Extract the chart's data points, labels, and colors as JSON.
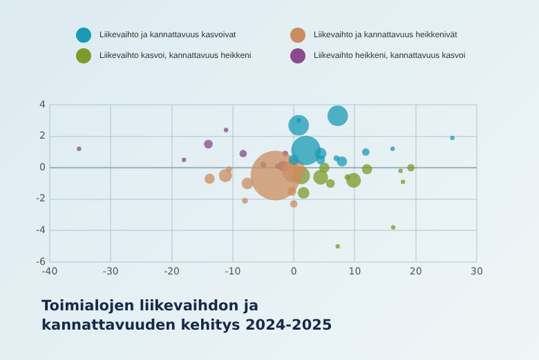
{
  "chart_data": {
    "type": "bubble",
    "title": "Toimialojen liikevaihdon ja kannattavuuden kehitys 2024-2025",
    "xlim": [
      -40,
      30
    ],
    "xticks": [
      -40,
      -30,
      -20,
      -10,
      0,
      10,
      20,
      30
    ],
    "ylim": [
      -6,
      4
    ],
    "yticks": [
      -6,
      -4,
      -2,
      0,
      2,
      4
    ],
    "grid": true,
    "legend": "top",
    "ref_lines": [
      {
        "axis": "y",
        "value": 0,
        "label": null
      }
    ],
    "series": [
      {
        "name": "Liikevaihto ja kannattavuus kasvoivat",
        "color": "#1a9bb5",
        "x": [
          0.8,
          7.2,
          2.0,
          4.4,
          0,
          4.4,
          7.9,
          7.0,
          11.8,
          16.2,
          26,
          0.8
        ],
        "values": [
          2.7,
          3.3,
          1.1,
          0.9,
          0.5,
          0.5,
          0.4,
          0.6,
          1.0,
          1.2,
          1.9,
          3.0
        ],
        "sizes": [
          0.17,
          0.17,
          0.35,
          0.055,
          0.042,
          0.031,
          0.042,
          0.014,
          0.022,
          0.008,
          0.008,
          0.008
        ]
      },
      {
        "name": "Liikevaihto ja kannattavuus heikkenivät",
        "color": "#c98d5f",
        "x": [
          -3,
          0,
          -13.8,
          -11.2,
          -10.6,
          -7.6,
          -8.0,
          0,
          -0.3
        ],
        "values": [
          -0.5,
          -0.2,
          -0.7,
          -0.5,
          -0.1,
          -1.0,
          -2.1,
          -2.3,
          -1.5
        ],
        "sizes": [
          1,
          0.22,
          0.042,
          0.07,
          0.014,
          0.055,
          0.014,
          0.022,
          0.031
        ]
      },
      {
        "name": "Liikevaihto kasvoi, kannattavuus heikkeni",
        "color": "#7d9a2a",
        "x": [
          1.2,
          4.4,
          5,
          6,
          9.8,
          12,
          8.8,
          1.6,
          19.2,
          17.5,
          17.9,
          16.3,
          7.2
        ],
        "values": [
          -0.5,
          -0.6,
          0,
          -1.0,
          -0.8,
          -0.1,
          -0.6,
          -1.6,
          0,
          -0.2,
          -0.9,
          -3.8,
          -5.0
        ],
        "sizes": [
          0.125,
          0.087,
          0.042,
          0.031,
          0.087,
          0.042,
          0.014,
          0.055,
          0.022,
          0.008,
          0.008,
          0.008,
          0.008
        ]
      },
      {
        "name": "Liikevaihto heikkeni, kannattavuus kasvoi",
        "color": "#8a4a8c",
        "x": [
          -35.2,
          -18,
          -14.0,
          -11.1,
          -8.3,
          -5.0,
          -2.6,
          -1.8,
          -1.4
        ],
        "values": [
          1.2,
          0.5,
          1.5,
          2.4,
          0.9,
          0.2,
          0.1,
          0.1,
          0.9
        ],
        "sizes": [
          0.008,
          0.008,
          0.031,
          0.008,
          0.022,
          0.014,
          0.014,
          0.042,
          0.014
        ]
      }
    ]
  }
}
